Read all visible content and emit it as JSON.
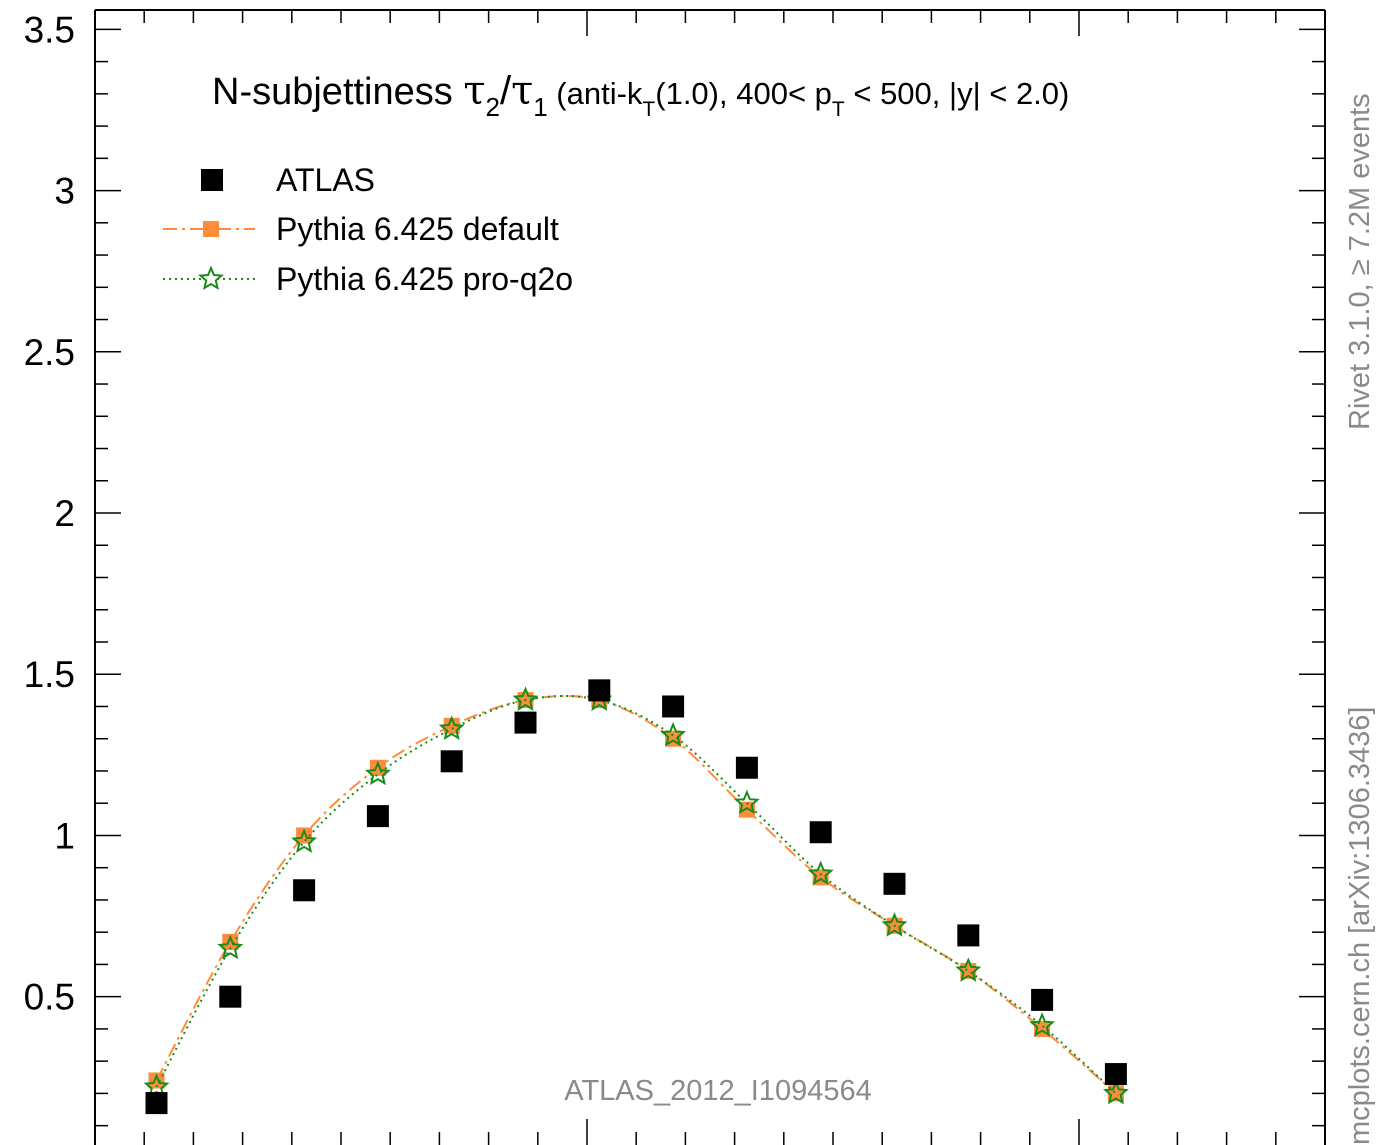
{
  "chart_data": {
    "type": "scatter",
    "title": "N-subjettiness τ2/τ1 (anti-kT(1.0), 400< pT < 500, |y| < 2.0)",
    "title_parts": {
      "main": "N-subjettiness ",
      "tau": "τ",
      "sub2": "2",
      "slash": "/",
      "sub1": "1",
      "rest_a": " (anti-k",
      "sub_t1": "T",
      "rest_b": "(1.0), 400< p",
      "sub_t2": "T",
      "rest_c": " < 500, |y| < 2.0)"
    },
    "y_ticks": [
      "0.5",
      "1",
      "1.5",
      "2",
      "2.5",
      "3",
      "3.5"
    ],
    "ylim": [
      0.04,
      3.56
    ],
    "xlim": [
      0,
      1
    ],
    "grid": false,
    "legend_position": "top-left",
    "legend": [
      "ATLAS",
      "Pythia 6.425 default",
      "Pythia 6.425 pro-q2o"
    ],
    "x": [
      0.05,
      0.11,
      0.17,
      0.23,
      0.29,
      0.35,
      0.41,
      0.47,
      0.53,
      0.59,
      0.65,
      0.71,
      0.77,
      0.83
    ],
    "series": [
      {
        "name": "ATLAS",
        "color": "#000000",
        "values": [
          0.17,
          0.5,
          0.83,
          1.06,
          1.23,
          1.35,
          1.45,
          1.4,
          1.21,
          1.01,
          0.85,
          0.69,
          0.49,
          0.26
        ]
      },
      {
        "name": "Pythia 6.425 default",
        "color": "#ff8c3a",
        "values": [
          0.24,
          0.67,
          1.0,
          1.21,
          1.34,
          1.42,
          1.42,
          1.3,
          1.08,
          0.87,
          0.72,
          0.58,
          0.4,
          0.2
        ]
      },
      {
        "name": "Pythia 6.425 pro-q2o",
        "color": "#1a8c1a",
        "values": [
          0.22,
          0.65,
          0.98,
          1.19,
          1.33,
          1.42,
          1.42,
          1.31,
          1.1,
          0.88,
          0.72,
          0.58,
          0.41,
          0.2
        ]
      }
    ],
    "annotation": "ATLAS_2012_I1094564"
  },
  "side_labels": {
    "right_top": "Rivet 3.1.0, ≥ 7.2M events",
    "right_bottom": "mcplots.cern.ch [arXiv:1306.3436]"
  }
}
